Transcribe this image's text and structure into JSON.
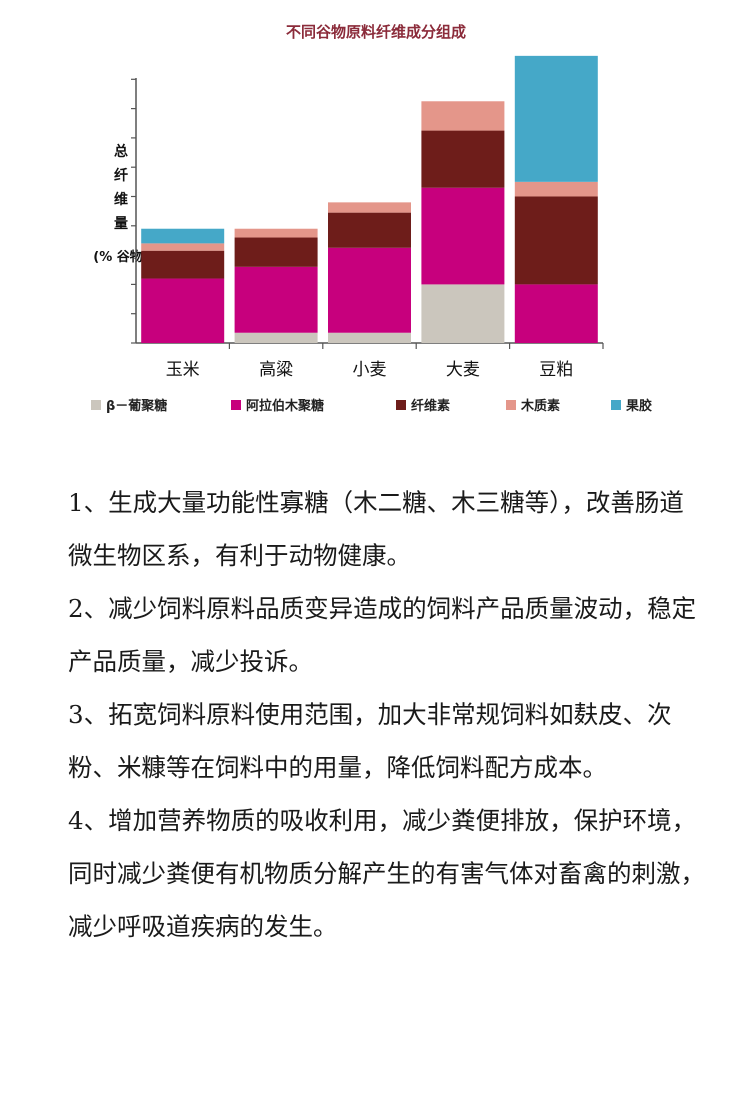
{
  "chart_data": {
    "type": "bar",
    "stacked": true,
    "title": "不同谷物原料纤维成分组成",
    "ylabel_lines": [
      "总",
      "纤",
      "维",
      "量"
    ],
    "ylabel_unit": "(% 谷物)",
    "categories": [
      "玉米",
      "高粱",
      "小麦",
      "大麦",
      "豆粕"
    ],
    "ylim": [
      0,
      10
    ],
    "grid": false,
    "legend_position": "bottom",
    "series": [
      {
        "name": "β－葡聚糖",
        "color": "#cbc6bd",
        "values": [
          0,
          0.35,
          0.35,
          2.0,
          0
        ]
      },
      {
        "name": "阿拉伯木聚糖",
        "color": "#c7007d",
        "values": [
          2.2,
          2.25,
          2.9,
          3.3,
          2.0
        ]
      },
      {
        "name": "纤维素",
        "color": "#6e1d1a",
        "values": [
          0.95,
          1.0,
          1.2,
          1.95,
          3.0
        ]
      },
      {
        "name": "木质素",
        "color": "#e4968a",
        "values": [
          0.25,
          0.3,
          0.35,
          1.0,
          0.5
        ]
      },
      {
        "name": "果胶",
        "color": "#45a8c8",
        "values": [
          0.5,
          0,
          0,
          0,
          4.3
        ]
      }
    ]
  },
  "paragraphs": [
    {
      "num": "1",
      "text": "、生成大量功能性寡糖（木二糖、木三糖等），改善肠道微生物区系，有利于动物健康。"
    },
    {
      "num": "2",
      "text": "、减少饲料原料品质变异造成的饲料产品质量波动，稳定产品质量，减少投诉。"
    },
    {
      "num": "3",
      "text": "、拓宽饲料原料使用范围，加大非常规饲料如麸皮、次粉、米糠等在饲料中的用量，降低饲料配方成本。"
    },
    {
      "num": "4",
      "text": "、增加营养物质的吸收利用，减少粪便排放，保护环境，同时减少粪便有机物质分解产生的有害气体对畜禽的刺激，减少呼吸道疾病的发生。"
    }
  ]
}
